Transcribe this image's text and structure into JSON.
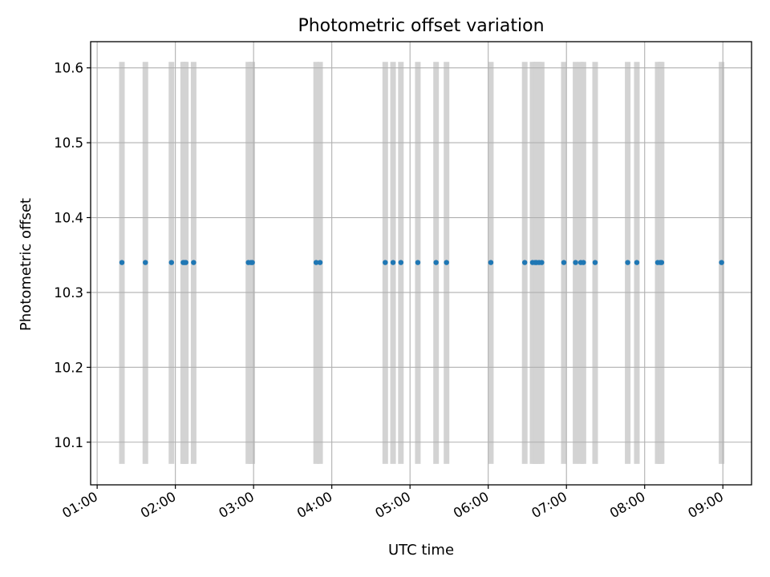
{
  "chart_data": {
    "type": "scatter",
    "title": "Photometric offset variation",
    "xlabel": "UTC time",
    "ylabel": "Photometric offset",
    "xlim": [
      "00:55",
      "09:22"
    ],
    "ylim": [
      10.043,
      10.635
    ],
    "grid": true,
    "x_ticks": [
      "01:00",
      "02:00",
      "03:00",
      "04:00",
      "05:00",
      "06:00",
      "07:00",
      "08:00",
      "09:00"
    ],
    "y_ticks": [
      10.1,
      10.2,
      10.3,
      10.4,
      10.5,
      10.6
    ],
    "band_range": [
      10.071,
      10.608
    ],
    "colors": {
      "points": "#1f77b4",
      "bands": "#d3d3d3",
      "grid": "#b0b0b0"
    },
    "series": [
      {
        "x": [
          "01:19",
          "01:37",
          "01:57",
          "02:06",
          "02:07",
          "02:08",
          "02:14",
          "02:56",
          "02:58",
          "02:59",
          "03:48",
          "03:51",
          "04:41",
          "04:47",
          "04:53",
          "05:06",
          "05:20",
          "05:28",
          "06:02",
          "06:28",
          "06:34",
          "06:36",
          "06:37",
          "06:39",
          "06:41",
          "06:58",
          "07:07",
          "07:11",
          "07:13",
          "07:22",
          "07:47",
          "07:54",
          "08:10",
          "08:12",
          "08:13",
          "08:59"
        ],
        "y": [
          10.34,
          10.34,
          10.34,
          10.34,
          10.34,
          10.34,
          10.34,
          10.34,
          10.34,
          10.34,
          10.34,
          10.34,
          10.34,
          10.34,
          10.34,
          10.34,
          10.34,
          10.34,
          10.34,
          10.34,
          10.34,
          10.34,
          10.34,
          10.34,
          10.34,
          10.34,
          10.34,
          10.34,
          10.34,
          10.34,
          10.34,
          10.34,
          10.34,
          10.34,
          10.34,
          10.34
        ]
      }
    ]
  }
}
